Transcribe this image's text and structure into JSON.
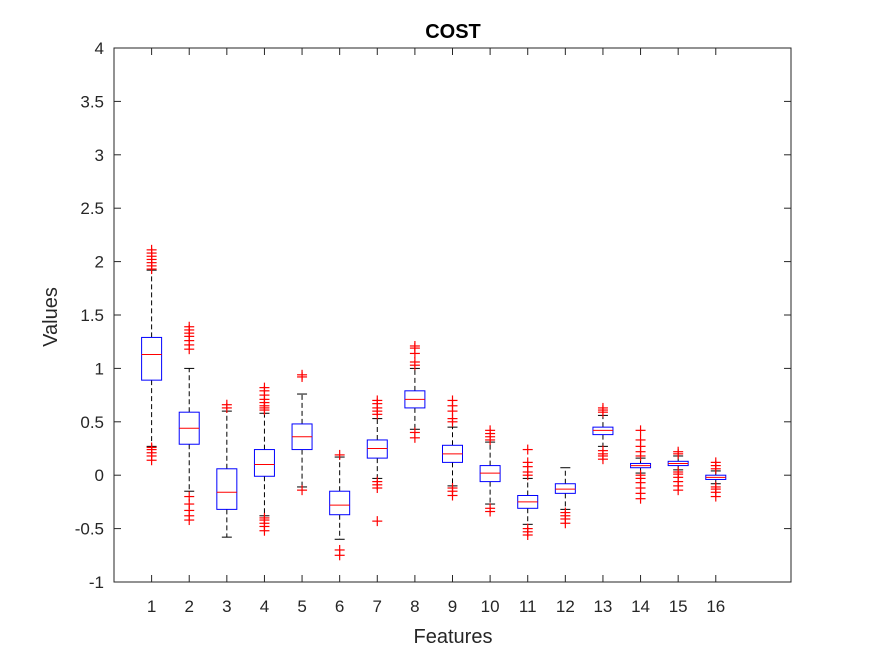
{
  "chart_data": {
    "type": "boxplot",
    "title": "COST",
    "xlabel": "Features",
    "ylabel": "Values",
    "ylim": [
      -1,
      4
    ],
    "yticks": [
      -1,
      -0.5,
      0,
      0.5,
      1,
      1.5,
      2,
      2.5,
      3,
      3.5,
      4
    ],
    "ytick_labels": [
      "-1",
      "-0.5",
      "0",
      "0.5",
      "1",
      "1.5",
      "2",
      "2.5",
      "3",
      "3.5",
      "4"
    ],
    "xlim": [
      0,
      18
    ],
    "colors": {
      "box": "#0000ff",
      "median": "#ff0000",
      "whisker": "#000000",
      "outlier": "#ff0000",
      "axis": "#262626"
    },
    "boxes": [
      {
        "label": "1",
        "q1": 0.89,
        "median": 1.13,
        "q3": 1.29,
        "wlo": 0.27,
        "whi": 1.92,
        "outliers": [
          0.14,
          0.18,
          0.21,
          0.24,
          0.26,
          1.93,
          1.96,
          1.99,
          2.02,
          2.05,
          2.08,
          2.11
        ]
      },
      {
        "label": "2",
        "q1": 0.29,
        "median": 0.44,
        "q3": 0.59,
        "wlo": -0.15,
        "whi": 1.0,
        "outliers": [
          -0.42,
          -0.38,
          -0.33,
          -0.27,
          -0.2,
          1.18,
          1.22,
          1.26,
          1.3,
          1.33,
          1.36,
          1.39
        ]
      },
      {
        "label": "3",
        "q1": -0.32,
        "median": -0.16,
        "q3": 0.06,
        "wlo": -0.58,
        "whi": 0.6,
        "outliers": [
          0.63,
          0.66
        ]
      },
      {
        "label": "4",
        "q1": -0.01,
        "median": 0.1,
        "q3": 0.24,
        "wlo": -0.38,
        "whi": 0.58,
        "outliers": [
          -0.52,
          -0.48,
          -0.45,
          -0.42,
          -0.4,
          0.61,
          0.63,
          0.65,
          0.68,
          0.71,
          0.75,
          0.79,
          0.82
        ]
      },
      {
        "label": "5",
        "q1": 0.24,
        "median": 0.36,
        "q3": 0.48,
        "wlo": -0.11,
        "whi": 0.76,
        "outliers": [
          -0.14,
          0.92,
          0.94
        ]
      },
      {
        "label": "6",
        "q1": -0.37,
        "median": -0.28,
        "q3": -0.15,
        "wlo": -0.6,
        "whi": 0.17,
        "outliers": [
          -0.75,
          -0.7,
          0.19
        ]
      },
      {
        "label": "7",
        "q1": 0.16,
        "median": 0.25,
        "q3": 0.33,
        "wlo": -0.03,
        "whi": 0.53,
        "outliers": [
          -0.43,
          -0.12,
          -0.09,
          -0.06,
          0.57,
          0.6,
          0.63,
          0.67,
          0.7
        ]
      },
      {
        "label": "8",
        "q1": 0.63,
        "median": 0.71,
        "q3": 0.79,
        "wlo": 0.43,
        "whi": 1.0,
        "outliers": [
          0.35,
          0.4,
          1.03,
          1.06,
          1.14,
          1.19,
          1.21
        ]
      },
      {
        "label": "9",
        "q1": 0.12,
        "median": 0.2,
        "q3": 0.28,
        "wlo": -0.1,
        "whi": 0.45,
        "outliers": [
          -0.19,
          -0.15,
          -0.12,
          0.5,
          0.53,
          0.6,
          0.65,
          0.7
        ]
      },
      {
        "label": "10",
        "q1": -0.06,
        "median": 0.02,
        "q3": 0.09,
        "wlo": -0.27,
        "whi": 0.31,
        "outliers": [
          -0.34,
          -0.31,
          0.33,
          0.36,
          0.39,
          0.42
        ]
      },
      {
        "label": "11",
        "q1": -0.31,
        "median": -0.25,
        "q3": -0.19,
        "wlo": -0.46,
        "whi": -0.03,
        "outliers": [
          -0.56,
          -0.53,
          -0.5,
          0.0,
          0.03,
          0.08,
          0.12,
          0.24
        ]
      },
      {
        "label": "12",
        "q1": -0.17,
        "median": -0.13,
        "q3": -0.08,
        "wlo": -0.32,
        "whi": 0.07,
        "outliers": [
          -0.45,
          -0.41,
          -0.38,
          -0.35
        ]
      },
      {
        "label": "13",
        "q1": 0.38,
        "median": 0.42,
        "q3": 0.45,
        "wlo": 0.27,
        "whi": 0.56,
        "outliers": [
          0.15,
          0.18,
          0.2,
          0.23,
          0.59,
          0.61,
          0.63
        ]
      },
      {
        "label": "14",
        "q1": 0.07,
        "median": 0.09,
        "q3": 0.11,
        "wlo": 0.02,
        "whi": 0.16,
        "outliers": [
          -0.22,
          -0.17,
          -0.12,
          -0.07,
          -0.03,
          0.0,
          0.18,
          0.22,
          0.27,
          0.33,
          0.42
        ]
      },
      {
        "label": "15",
        "q1": 0.09,
        "median": 0.11,
        "q3": 0.13,
        "wlo": 0.05,
        "whi": 0.18,
        "outliers": [
          -0.14,
          -0.1,
          -0.06,
          -0.02,
          0.01,
          0.03,
          0.2,
          0.22
        ]
      },
      {
        "label": "16",
        "q1": -0.04,
        "median": -0.02,
        "q3": 0.0,
        "wlo": -0.08,
        "whi": 0.04,
        "outliers": [
          -0.2,
          -0.16,
          -0.13,
          -0.11,
          0.06,
          0.09,
          0.12
        ]
      }
    ]
  }
}
